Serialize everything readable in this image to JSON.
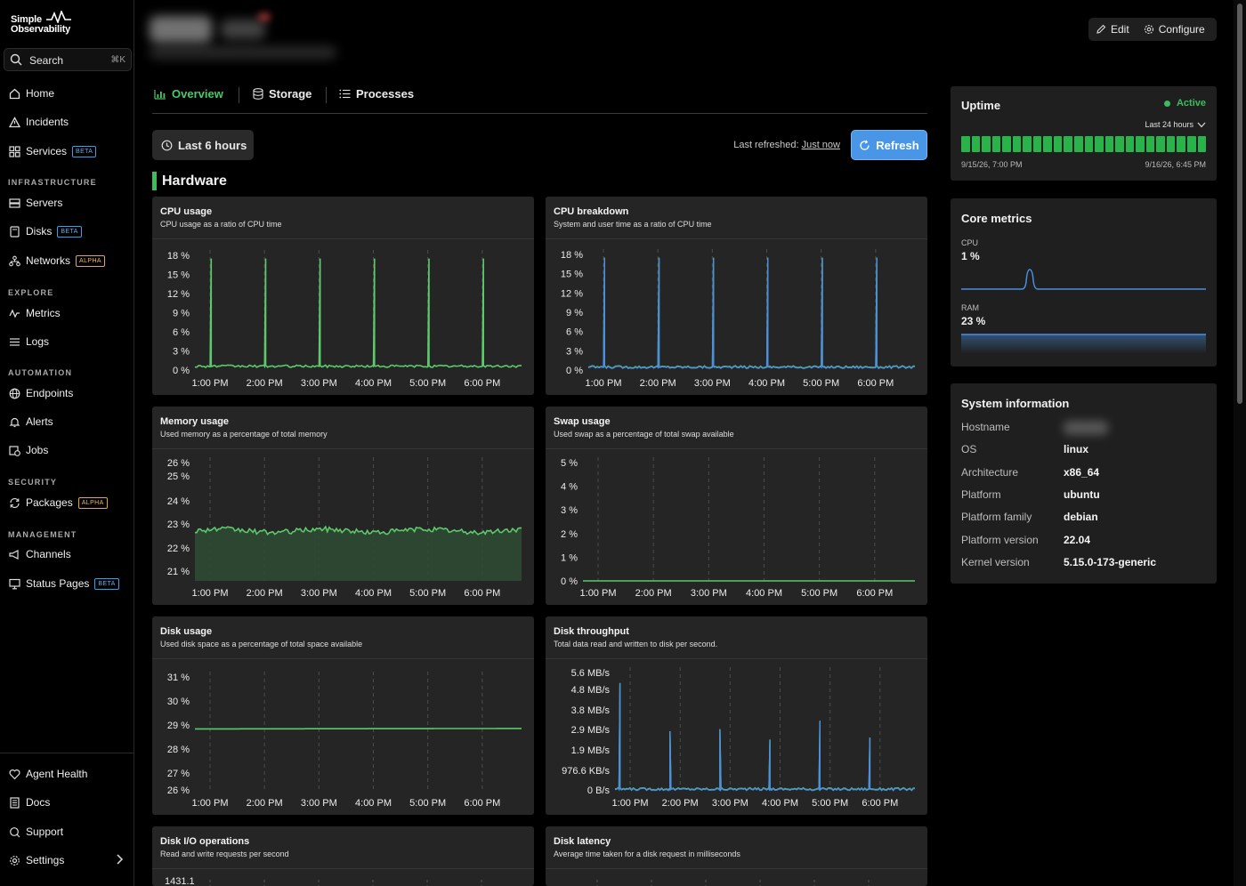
{
  "app": {
    "logo_line1": "Simple",
    "logo_line2": "Observability"
  },
  "search": {
    "label": "Search",
    "shortcut": "⌘K"
  },
  "sidebar": {
    "home": "Home",
    "incidents": "Incidents",
    "services": "Services",
    "services_badge": "BETA",
    "infrastructure": "INFRASTRUCTURE",
    "servers": "Servers",
    "disks": "Disks",
    "disks_badge": "BETA",
    "networks": "Networks",
    "networks_badge": "ALPHA",
    "explore": "EXPLORE",
    "metrics": "Metrics",
    "logs": "Logs",
    "automation": "AUTOMATION",
    "endpoints": "Endpoints",
    "alerts": "Alerts",
    "jobs": "Jobs",
    "security": "SECURITY",
    "packages": "Packages",
    "packages_badge": "ALPHA",
    "management": "MANAGEMENT",
    "channels": "Channels",
    "status_pages": "Status Pages",
    "status_pages_badge": "BETA",
    "agent_health": "Agent Health",
    "docs": "Docs",
    "support": "Support",
    "settings": "Settings"
  },
  "toolbar": {
    "edit": "Edit",
    "configure": "Configure"
  },
  "tabs": {
    "overview": "Overview",
    "storage": "Storage",
    "processes": "Processes"
  },
  "controls": {
    "range": "Last 6 hours",
    "last_refreshed": "Last refreshed:",
    "last_refreshed_value": "Just now",
    "refresh": "Refresh"
  },
  "section": {
    "title": "Hardware"
  },
  "colors": {
    "green": "#5cc96b",
    "blue": "#4a8fe0",
    "accent": "#4a96e6"
  },
  "charts": [
    {
      "key": "cpu",
      "title": "CPU usage",
      "subtitle": "CPU usage as a ratio of CPU time"
    },
    {
      "key": "cpub",
      "title": "CPU breakdown",
      "subtitle": "System and user time as a ratio of CPU time"
    },
    {
      "key": "mem",
      "title": "Memory usage",
      "subtitle": "Used memory as a percentage of total memory"
    },
    {
      "key": "swap",
      "title": "Swap usage",
      "subtitle": "Used swap as a percentage of total swap available"
    },
    {
      "key": "disk",
      "title": "Disk usage",
      "subtitle": "Used disk space as a percentage of total space available"
    },
    {
      "key": "dthr",
      "title": "Disk throughput",
      "subtitle": "Total data read and written to disk per second."
    },
    {
      "key": "dio",
      "title": "Disk I/O operations",
      "subtitle": "Read and write requests per second"
    },
    {
      "key": "dlat",
      "title": "Disk latency",
      "subtitle": "Average time taken for a disk request in milliseconds"
    }
  ],
  "chart_data": [
    {
      "type": "line",
      "key": "cpu",
      "categories": [
        "1:00 PM",
        "2:00 PM",
        "3:00 PM",
        "4:00 PM",
        "5:00 PM",
        "6:00 PM"
      ],
      "yticks": [
        "18 %",
        "15 %",
        "12 %",
        "9 %",
        "6 %",
        "3 %",
        "0 %"
      ],
      "ylim": [
        0,
        18
      ],
      "baseline": 0.6,
      "spikes": [
        {
          "x": 0.3,
          "y": 17.5
        },
        {
          "x": 1.3,
          "y": 17.5
        },
        {
          "x": 2.3,
          "y": 17.5
        },
        {
          "x": 3.3,
          "y": 17.5
        },
        {
          "x": 4.3,
          "y": 17.5
        },
        {
          "x": 5.3,
          "y": 17.5
        }
      ],
      "series": [
        {
          "color": "#5cc96b"
        }
      ]
    },
    {
      "type": "line",
      "key": "cpub",
      "categories": [
        "1:00 PM",
        "2:00 PM",
        "3:00 PM",
        "4:00 PM",
        "5:00 PM",
        "6:00 PM"
      ],
      "yticks": [
        "18 %",
        "15 %",
        "12 %",
        "9 %",
        "6 %",
        "3 %",
        "0 %"
      ],
      "ylim": [
        0,
        18
      ],
      "baseline": 0.5,
      "spikes": [
        {
          "x": 0.3,
          "y": 17.5
        },
        {
          "x": 1.3,
          "y": 17.5
        },
        {
          "x": 2.3,
          "y": 17.5
        },
        {
          "x": 3.3,
          "y": 17.5
        },
        {
          "x": 4.3,
          "y": 17.5
        },
        {
          "x": 5.3,
          "y": 17.5
        }
      ],
      "series": [
        {
          "color": "#5cc96b"
        },
        {
          "color": "#4a8fe0"
        }
      ]
    },
    {
      "type": "area",
      "key": "mem",
      "categories": [
        "1:00 PM",
        "2:00 PM",
        "3:00 PM",
        "4:00 PM",
        "5:00 PM",
        "6:00 PM"
      ],
      "yticks": [
        "26 %",
        "25 %",
        "24 %",
        "23 %",
        "22 %",
        "21 %"
      ],
      "ylim": [
        20.5,
        26.4
      ],
      "baseline": 23.0,
      "series": [
        {
          "color": "#5cc96b"
        }
      ]
    },
    {
      "type": "line",
      "key": "swap",
      "categories": [
        "1:00 PM",
        "2:00 PM",
        "3:00 PM",
        "4:00 PM",
        "5:00 PM",
        "6:00 PM"
      ],
      "yticks": [
        "5 %",
        "4 %",
        "3 %",
        "2 %",
        "1 %",
        "0 %"
      ],
      "ylim": [
        0,
        5
      ],
      "baseline": 0.0,
      "series": [
        {
          "color": "#5cc96b"
        }
      ]
    },
    {
      "type": "line",
      "key": "disk",
      "categories": [
        "1:00 PM",
        "2:00 PM",
        "3:00 PM",
        "4:00 PM",
        "5:00 PM",
        "6:00 PM"
      ],
      "yticks": [
        "31 %",
        "30 %",
        "29 %",
        "28 %",
        "27 %",
        "26 %"
      ],
      "ylim": [
        26,
        31
      ],
      "baseline": 28.7,
      "series": [
        {
          "color": "#5cc96b"
        }
      ]
    },
    {
      "type": "line",
      "key": "dthr",
      "categories": [
        "1:00 PM",
        "2:00 PM",
        "3:00 PM",
        "4:00 PM",
        "5:00 PM",
        "6:00 PM"
      ],
      "yticks": [
        "5.6 MB/s",
        "4.8 MB/s",
        "3.8 MB/s",
        "2.9 MB/s",
        "1.9 MB/s",
        "976.6 KB/s",
        "0 B/s"
      ],
      "ylim": [
        0,
        5.6
      ],
      "baseline": 0.05,
      "spikes": [
        {
          "x": 0.1,
          "y": 5.1
        },
        {
          "x": 1.1,
          "y": 2.8
        },
        {
          "x": 2.1,
          "y": 2.9
        },
        {
          "x": 3.1,
          "y": 2.4
        },
        {
          "x": 4.1,
          "y": 3.3
        },
        {
          "x": 5.1,
          "y": 2.5
        }
      ],
      "series": [
        {
          "color": "#5cc96b"
        },
        {
          "color": "#4a8fe0"
        }
      ]
    },
    {
      "type": "line",
      "key": "dio",
      "yticks": [
        "1431.1"
      ]
    },
    {
      "type": "line",
      "key": "dlat",
      "yticks": []
    }
  ],
  "uptime": {
    "title": "Uptime",
    "status": "Active",
    "range": "Last 24 hours",
    "start": "9/15/26, 7:00 PM",
    "end": "9/16/26, 6:45 PM",
    "bars": 24
  },
  "core_metrics": {
    "title": "Core metrics",
    "cpu_label": "CPU",
    "cpu_value": "1 %",
    "ram_label": "RAM",
    "ram_value": "23 %"
  },
  "system_info": {
    "title": "System information",
    "rows": [
      {
        "k": "Hostname",
        "v": ""
      },
      {
        "k": "OS",
        "v": "linux"
      },
      {
        "k": "Architecture",
        "v": "x86_64"
      },
      {
        "k": "Platform",
        "v": "ubuntu"
      },
      {
        "k": "Platform family",
        "v": "debian"
      },
      {
        "k": "Platform version",
        "v": "22.04"
      },
      {
        "k": "Kernel version",
        "v": "5.15.0-173-generic"
      }
    ]
  }
}
